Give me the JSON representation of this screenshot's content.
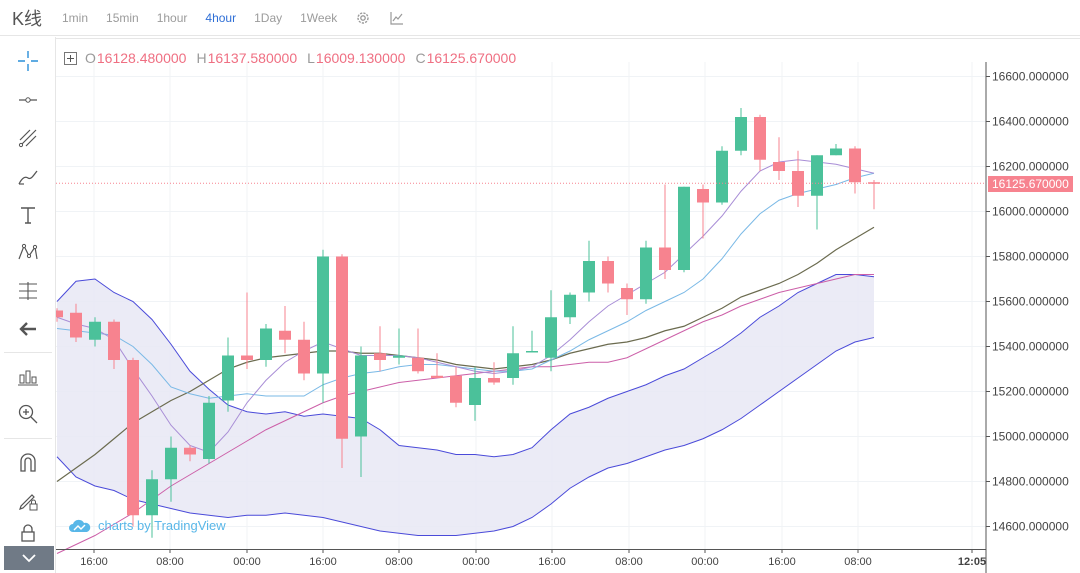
{
  "header": {
    "title": "K线",
    "timeframes": [
      {
        "label": "1min",
        "active": false
      },
      {
        "label": "15min",
        "active": false
      },
      {
        "label": "1hour",
        "active": false
      },
      {
        "label": "4hour",
        "active": true
      },
      {
        "label": "1Day",
        "active": false
      },
      {
        "label": "1Week",
        "active": false
      }
    ],
    "icons": [
      "settings-gear-icon",
      "indicators-chart-icon"
    ]
  },
  "toolbar": {
    "tools": [
      "crosshair-icon",
      "horizontal-line-icon",
      "fib-tools-icon",
      "brush-icon",
      "text-icon",
      "pattern-icon",
      "measure-icon",
      "back-arrow-icon",
      "long-short-icon",
      "zoom-in-icon",
      "magnet-icon",
      "lock-drawing-icon",
      "lock-icon"
    ],
    "collapse_icon": "chevron-down-icon"
  },
  "legend": {
    "o_key": "O",
    "o_val": "16128.480000",
    "h_key": "H",
    "h_val": "16137.580000",
    "l_key": "L",
    "l_val": "16009.130000",
    "c_key": "C",
    "c_val": "16125.670000"
  },
  "last_price": "16125.670000",
  "watermark": "charts by TradingView",
  "colors": {
    "up": "#4bc19a",
    "down": "#f7838f",
    "band_line": "#4a4ad9",
    "band_fill": "#e8e8f4"
  },
  "chart_data": {
    "type": "candlestick",
    "y_ticks": [
      "16600.000000",
      "16400.000000",
      "16200.000000",
      "16000.000000",
      "15800.000000",
      "15600.000000",
      "15400.000000",
      "15200.000000",
      "15000.000000",
      "14800.000000",
      "14600.000000"
    ],
    "x_ticks": [
      "16:00",
      "08:00",
      "00:00",
      "16:00",
      "08:00",
      "00:00",
      "16:00",
      "08:00",
      "00:00",
      "16:00",
      "08:00",
      "12:05"
    ],
    "ylim": [
      14500,
      16670
    ],
    "candles": [
      [
        15560,
        15570,
        15510,
        15530
      ],
      [
        15550,
        15590,
        15420,
        15440
      ],
      [
        15430,
        15530,
        15400,
        15510
      ],
      [
        15510,
        15520,
        15300,
        15340
      ],
      [
        15340,
        15350,
        14600,
        14650
      ],
      [
        14650,
        14850,
        14550,
        14810
      ],
      [
        14810,
        15000,
        14710,
        14950
      ],
      [
        14950,
        14960,
        14890,
        14920
      ],
      [
        14900,
        15180,
        14880,
        15150
      ],
      [
        15160,
        15440,
        15110,
        15360
      ],
      [
        15360,
        15640,
        15300,
        15340
      ],
      [
        15340,
        15500,
        15310,
        15480
      ],
      [
        15470,
        15580,
        15370,
        15430
      ],
      [
        15430,
        15510,
        15250,
        15280
      ],
      [
        15280,
        15830,
        15150,
        15800
      ],
      [
        15800,
        15810,
        14860,
        14990
      ],
      [
        15000,
        15400,
        14820,
        15360
      ],
      [
        15370,
        15490,
        15290,
        15340
      ],
      [
        15350,
        15480,
        15320,
        15360
      ],
      [
        15350,
        15480,
        15280,
        15290
      ],
      [
        15270,
        15370,
        15260,
        15260
      ],
      [
        15270,
        15310,
        15130,
        15150
      ],
      [
        15140,
        15310,
        15070,
        15260
      ],
      [
        15260,
        15330,
        15230,
        15240
      ],
      [
        15260,
        15490,
        15230,
        15370
      ],
      [
        15380,
        15470,
        15380,
        15380
      ],
      [
        15350,
        15650,
        15290,
        15530
      ],
      [
        15530,
        15640,
        15500,
        15630
      ],
      [
        15640,
        15870,
        15600,
        15780
      ],
      [
        15780,
        15800,
        15640,
        15680
      ],
      [
        15660,
        15680,
        15540,
        15610
      ],
      [
        15610,
        15870,
        15590,
        15840
      ],
      [
        15840,
        16120,
        15700,
        15740
      ],
      [
        15740,
        16110,
        15730,
        16110
      ],
      [
        16100,
        16120,
        15880,
        16040
      ],
      [
        16040,
        16290,
        16030,
        16270
      ],
      [
        16270,
        16460,
        16250,
        16420
      ],
      [
        16420,
        16430,
        16180,
        16230
      ],
      [
        16220,
        16330,
        16140,
        16180
      ],
      [
        16180,
        16270,
        16020,
        16070
      ],
      [
        16070,
        16250,
        15920,
        16250
      ],
      [
        16250,
        16300,
        16250,
        16280
      ],
      [
        16280,
        16290,
        16080,
        16130
      ],
      [
        16130,
        16140,
        16010,
        16126
      ]
    ],
    "bollinger_upper": [
      15600,
      15690,
      15700,
      15640,
      15600,
      15520,
      15410,
      15290,
      15210,
      15140,
      15110,
      15100,
      15110,
      15090,
      15100,
      15090,
      15080,
      15030,
      14960,
      14950,
      14940,
      14920,
      14920,
      14910,
      14920,
      14950,
      15030,
      15100,
      15130,
      15170,
      15200,
      15230,
      15270,
      15300,
      15350,
      15400,
      15460,
      15530,
      15580,
      15640,
      15680,
      15720,
      15720,
      15710
    ],
    "bollinger_lower": [
      14910,
      14820,
      14780,
      14760,
      14720,
      14700,
      14680,
      14660,
      14650,
      14640,
      14650,
      14650,
      14660,
      14650,
      14640,
      14620,
      14600,
      14580,
      14570,
      14560,
      14560,
      14560,
      14570,
      14580,
      14600,
      14640,
      14700,
      14770,
      14820,
      14860,
      14880,
      14910,
      14940,
      14960,
      14990,
      15030,
      15080,
      15140,
      15200,
      15260,
      15320,
      15380,
      15420,
      15440
    ],
    "ma_fast": [
      15530,
      15500,
      15480,
      15430,
      15300,
      15180,
      15050,
      14960,
      14930,
      15020,
      15150,
      15250,
      15330,
      15380,
      15420,
      15390,
      15360,
      15360,
      15360,
      15350,
      15330,
      15310,
      15290,
      15280,
      15290,
      15310,
      15360,
      15430,
      15510,
      15580,
      15630,
      15680,
      15730,
      15810,
      15890,
      15980,
      16090,
      16180,
      16220,
      16230,
      16220,
      16210,
      16190,
      16170
    ],
    "ma_mid": [
      15480,
      15470,
      15460,
      15450,
      15400,
      15320,
      15220,
      15190,
      15170,
      15180,
      15190,
      15180,
      15180,
      15180,
      15230,
      15260,
      15280,
      15290,
      15310,
      15320,
      15320,
      15310,
      15300,
      15290,
      15290,
      15300,
      15340,
      15380,
      15430,
      15470,
      15510,
      15560,
      15600,
      15640,
      15700,
      15790,
      15900,
      15990,
      16050,
      16080,
      16100,
      16120,
      16150,
      16170
    ],
    "ma_slow": [
      14800,
      14860,
      14920,
      14990,
      15060,
      15110,
      15160,
      15200,
      15250,
      15300,
      15330,
      15350,
      15360,
      15370,
      15380,
      15380,
      15370,
      15370,
      15360,
      15350,
      15340,
      15320,
      15310,
      15300,
      15310,
      15320,
      15340,
      15370,
      15390,
      15410,
      15420,
      15440,
      15470,
      15490,
      15530,
      15570,
      15620,
      15650,
      15680,
      15720,
      15770,
      15830,
      15880,
      15930
    ],
    "ma_long": [
      14480,
      14520,
      14560,
      14610,
      14660,
      14720,
      14780,
      14830,
      14880,
      14930,
      14980,
      15030,
      15070,
      15110,
      15150,
      15180,
      15200,
      15220,
      15240,
      15250,
      15260,
      15270,
      15280,
      15290,
      15300,
      15310,
      15310,
      15320,
      15330,
      15330,
      15350,
      15390,
      15430,
      15470,
      15510,
      15540,
      15580,
      15610,
      15640,
      15660,
      15680,
      15700,
      15720,
      15720
    ]
  }
}
